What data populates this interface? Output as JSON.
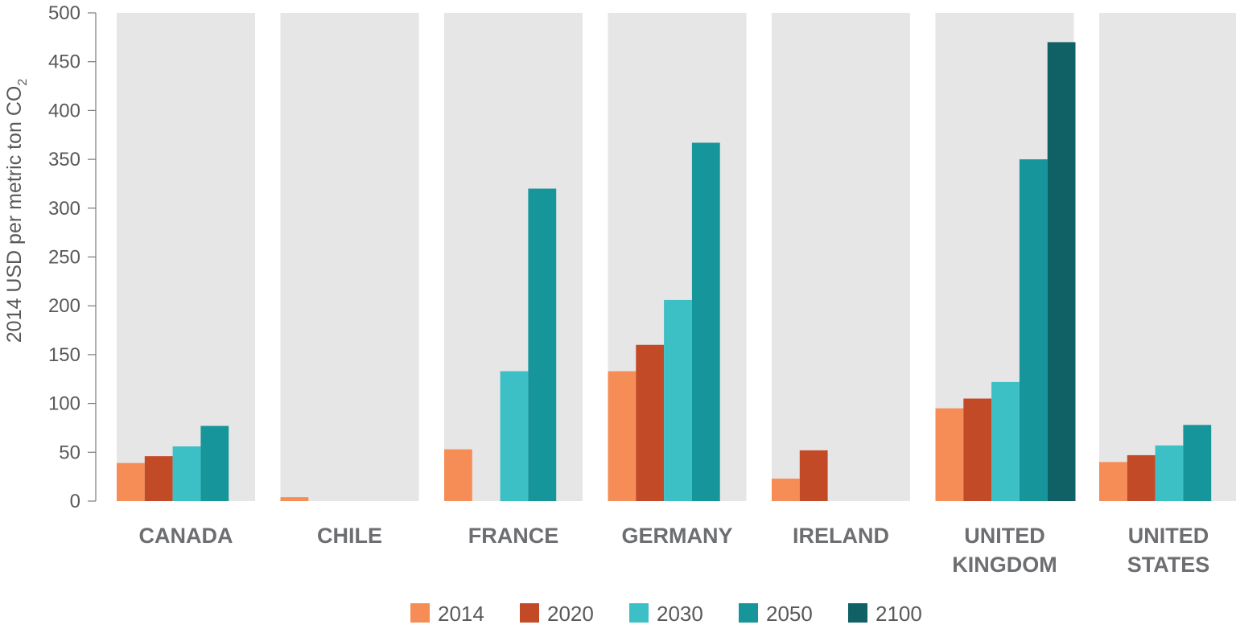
{
  "chart_data": {
    "type": "bar",
    "categories": [
      [
        "CANADA"
      ],
      [
        "CHILE"
      ],
      [
        "FRANCE"
      ],
      [
        "GERMANY"
      ],
      [
        "IRELAND"
      ],
      [
        "UNITED",
        "KINGDOM"
      ],
      [
        "UNITED",
        "STATES"
      ]
    ],
    "series": [
      {
        "name": "2014",
        "color": "#f68d56",
        "values": [
          39,
          4,
          53,
          133,
          23,
          95,
          40
        ]
      },
      {
        "name": "2020",
        "color": "#c24a26",
        "values": [
          46,
          null,
          null,
          160,
          52,
          105,
          47
        ]
      },
      {
        "name": "2030",
        "color": "#3cc0c6",
        "values": [
          56,
          null,
          133,
          206,
          null,
          122,
          57
        ]
      },
      {
        "name": "2050",
        "color": "#16959a",
        "values": [
          77,
          null,
          320,
          367,
          null,
          350,
          78
        ]
      },
      {
        "name": "2100",
        "color": "#0f6165",
        "values": [
          null,
          null,
          null,
          null,
          null,
          470,
          null
        ]
      }
    ],
    "ylabel": "2014 USD per metric ton CO",
    "ylabel_subscript": "2",
    "ylim": [
      0,
      500
    ],
    "yticks": [
      0,
      50,
      100,
      150,
      200,
      250,
      300,
      350,
      400,
      450,
      500
    ],
    "panel_color": "#e6e6e6",
    "legend_position": "bottom-center"
  }
}
